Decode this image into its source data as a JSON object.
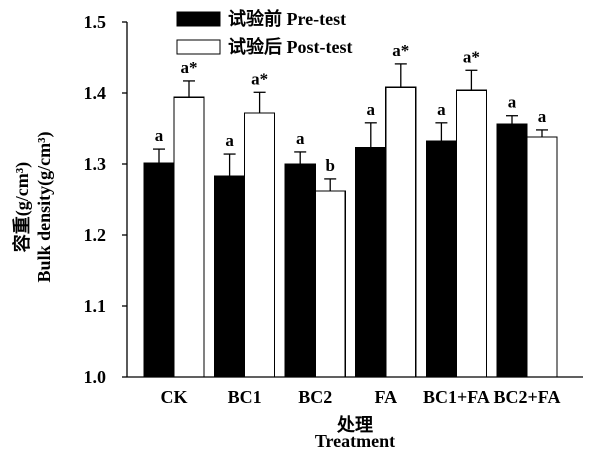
{
  "chart_data": {
    "type": "bar",
    "categories": [
      "CK",
      "BC1",
      "BC2",
      "FA",
      "BC1+FA",
      "BC2+FA"
    ],
    "series": [
      {
        "name": "试验前 Pre-test",
        "color": "#000000",
        "values": [
          1.301,
          1.283,
          1.3,
          1.323,
          1.332,
          1.356
        ],
        "errors": [
          0.02,
          0.031,
          0.017,
          0.035,
          0.026,
          0.012
        ],
        "labels": [
          "a",
          "a",
          "a",
          "a",
          "a",
          "a"
        ]
      },
      {
        "name": "试验后 Post-test",
        "color": "#ffffff",
        "values": [
          1.394,
          1.372,
          1.262,
          1.408,
          1.404,
          1.338
        ],
        "errors": [
          0.023,
          0.029,
          0.017,
          0.033,
          0.028,
          0.01
        ],
        "labels": [
          "a*",
          "a*",
          "b",
          "a*",
          "a*",
          "a"
        ]
      }
    ],
    "xlabel": [
      "处理",
      "Treatment"
    ],
    "ylabel": [
      "容重(g/cm³)",
      "Bulk density(g/cm³)"
    ],
    "ylim": [
      1.0,
      1.5
    ],
    "yticks": [
      "1.0",
      "1.1",
      "1.2",
      "1.3",
      "1.4",
      "1.5"
    ],
    "grid": false,
    "legend": "top-left"
  }
}
